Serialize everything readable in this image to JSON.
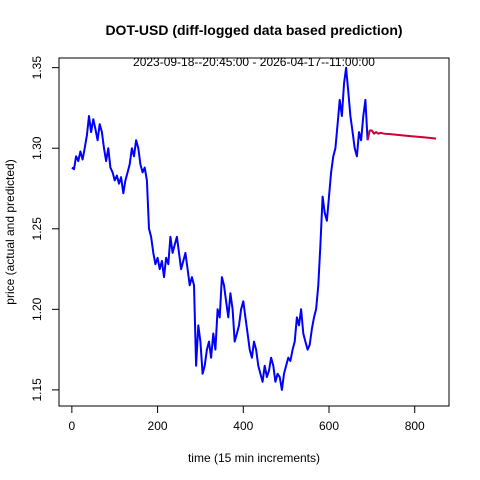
{
  "chart_data": {
    "type": "line",
    "title": "DOT-USD (diff-logged data based prediction)",
    "subtitle": "2023-09-18--20:45:00  -  2026-04-17--11:00:00",
    "xlabel": "time (15 min increments)",
    "ylabel": "price (actual and predicted)",
    "xlim": [
      -30,
      880
    ],
    "ylim": [
      1.14,
      1.356
    ],
    "x_ticks": [
      0,
      200,
      400,
      600,
      800
    ],
    "y_ticks": [
      1.15,
      1.2,
      1.25,
      1.3,
      1.35
    ],
    "y_tick_labels": [
      "1.15",
      "1.20",
      "1.25",
      "1.30",
      "1.35"
    ],
    "grid": false,
    "series": [
      {
        "color": "#0000ff",
        "x": [
          0,
          5,
          10,
          15,
          20,
          25,
          30,
          35,
          40,
          45,
          50,
          55,
          60,
          65,
          70,
          75,
          80,
          85,
          90,
          95,
          100,
          105,
          110,
          115,
          120,
          125,
          130,
          135,
          140,
          145,
          150,
          155,
          160,
          165,
          170,
          175,
          180,
          185,
          190,
          195,
          200,
          205,
          210,
          215,
          220,
          225,
          230,
          235,
          240,
          245,
          250,
          255,
          260,
          265,
          270,
          275,
          280,
          285,
          290,
          295,
          300,
          305,
          310,
          315,
          320,
          325,
          330,
          335,
          340,
          345,
          350,
          355,
          360,
          365,
          370,
          375,
          380,
          385,
          390,
          395,
          400,
          405,
          410,
          415,
          420,
          425,
          430,
          435,
          440,
          445,
          450,
          455,
          460,
          465,
          470,
          475,
          480,
          485,
          490,
          495,
          500,
          505,
          510,
          515,
          520,
          525,
          530,
          535,
          540,
          545,
          550,
          555,
          560,
          565,
          570,
          575,
          580,
          585,
          590,
          595,
          600,
          605,
          610,
          615,
          620,
          625,
          630,
          635,
          640,
          645,
          650,
          655,
          660,
          665,
          670,
          675,
          680,
          685,
          690
        ],
        "y": [
          1.288,
          1.287,
          1.295,
          1.292,
          1.298,
          1.293,
          1.3,
          1.308,
          1.32,
          1.31,
          1.318,
          1.312,
          1.305,
          1.315,
          1.31,
          1.3,
          1.292,
          1.3,
          1.288,
          1.285,
          1.28,
          1.283,
          1.278,
          1.282,
          1.272,
          1.28,
          1.285,
          1.29,
          1.3,
          1.295,
          1.305,
          1.3,
          1.29,
          1.285,
          1.288,
          1.28,
          1.25,
          1.245,
          1.235,
          1.228,
          1.232,
          1.225,
          1.23,
          1.22,
          1.232,
          1.228,
          1.245,
          1.235,
          1.24,
          1.245,
          1.235,
          1.225,
          1.23,
          1.235,
          1.225,
          1.215,
          1.22,
          1.215,
          1.165,
          1.19,
          1.18,
          1.16,
          1.165,
          1.175,
          1.18,
          1.17,
          1.185,
          1.175,
          1.2,
          1.195,
          1.22,
          1.215,
          1.205,
          1.195,
          1.21,
          1.2,
          1.18,
          1.185,
          1.19,
          1.2,
          1.205,
          1.195,
          1.185,
          1.175,
          1.17,
          1.18,
          1.175,
          1.165,
          1.16,
          1.155,
          1.165,
          1.158,
          1.162,
          1.17,
          1.165,
          1.155,
          1.16,
          1.158,
          1.15,
          1.16,
          1.165,
          1.17,
          1.168,
          1.175,
          1.18,
          1.195,
          1.19,
          1.2,
          1.185,
          1.18,
          1.175,
          1.178,
          1.188,
          1.195,
          1.2,
          1.215,
          1.24,
          1.27,
          1.26,
          1.255,
          1.27,
          1.285,
          1.295,
          1.3,
          1.315,
          1.33,
          1.32,
          1.34,
          1.35,
          1.335,
          1.32,
          1.31,
          1.3,
          1.295,
          1.31,
          1.305,
          1.32,
          1.33,
          1.305
        ]
      },
      {
        "color": "#cc0033",
        "x": [
          690,
          695,
          700,
          705,
          710,
          715,
          720,
          730,
          740,
          760,
          780,
          800,
          820,
          840,
          850
        ],
        "y": [
          1.305,
          1.311,
          1.311,
          1.309,
          1.31,
          1.309,
          1.3095,
          1.309,
          1.3088,
          1.3083,
          1.3078,
          1.3073,
          1.3068,
          1.3063,
          1.306
        ]
      }
    ]
  }
}
